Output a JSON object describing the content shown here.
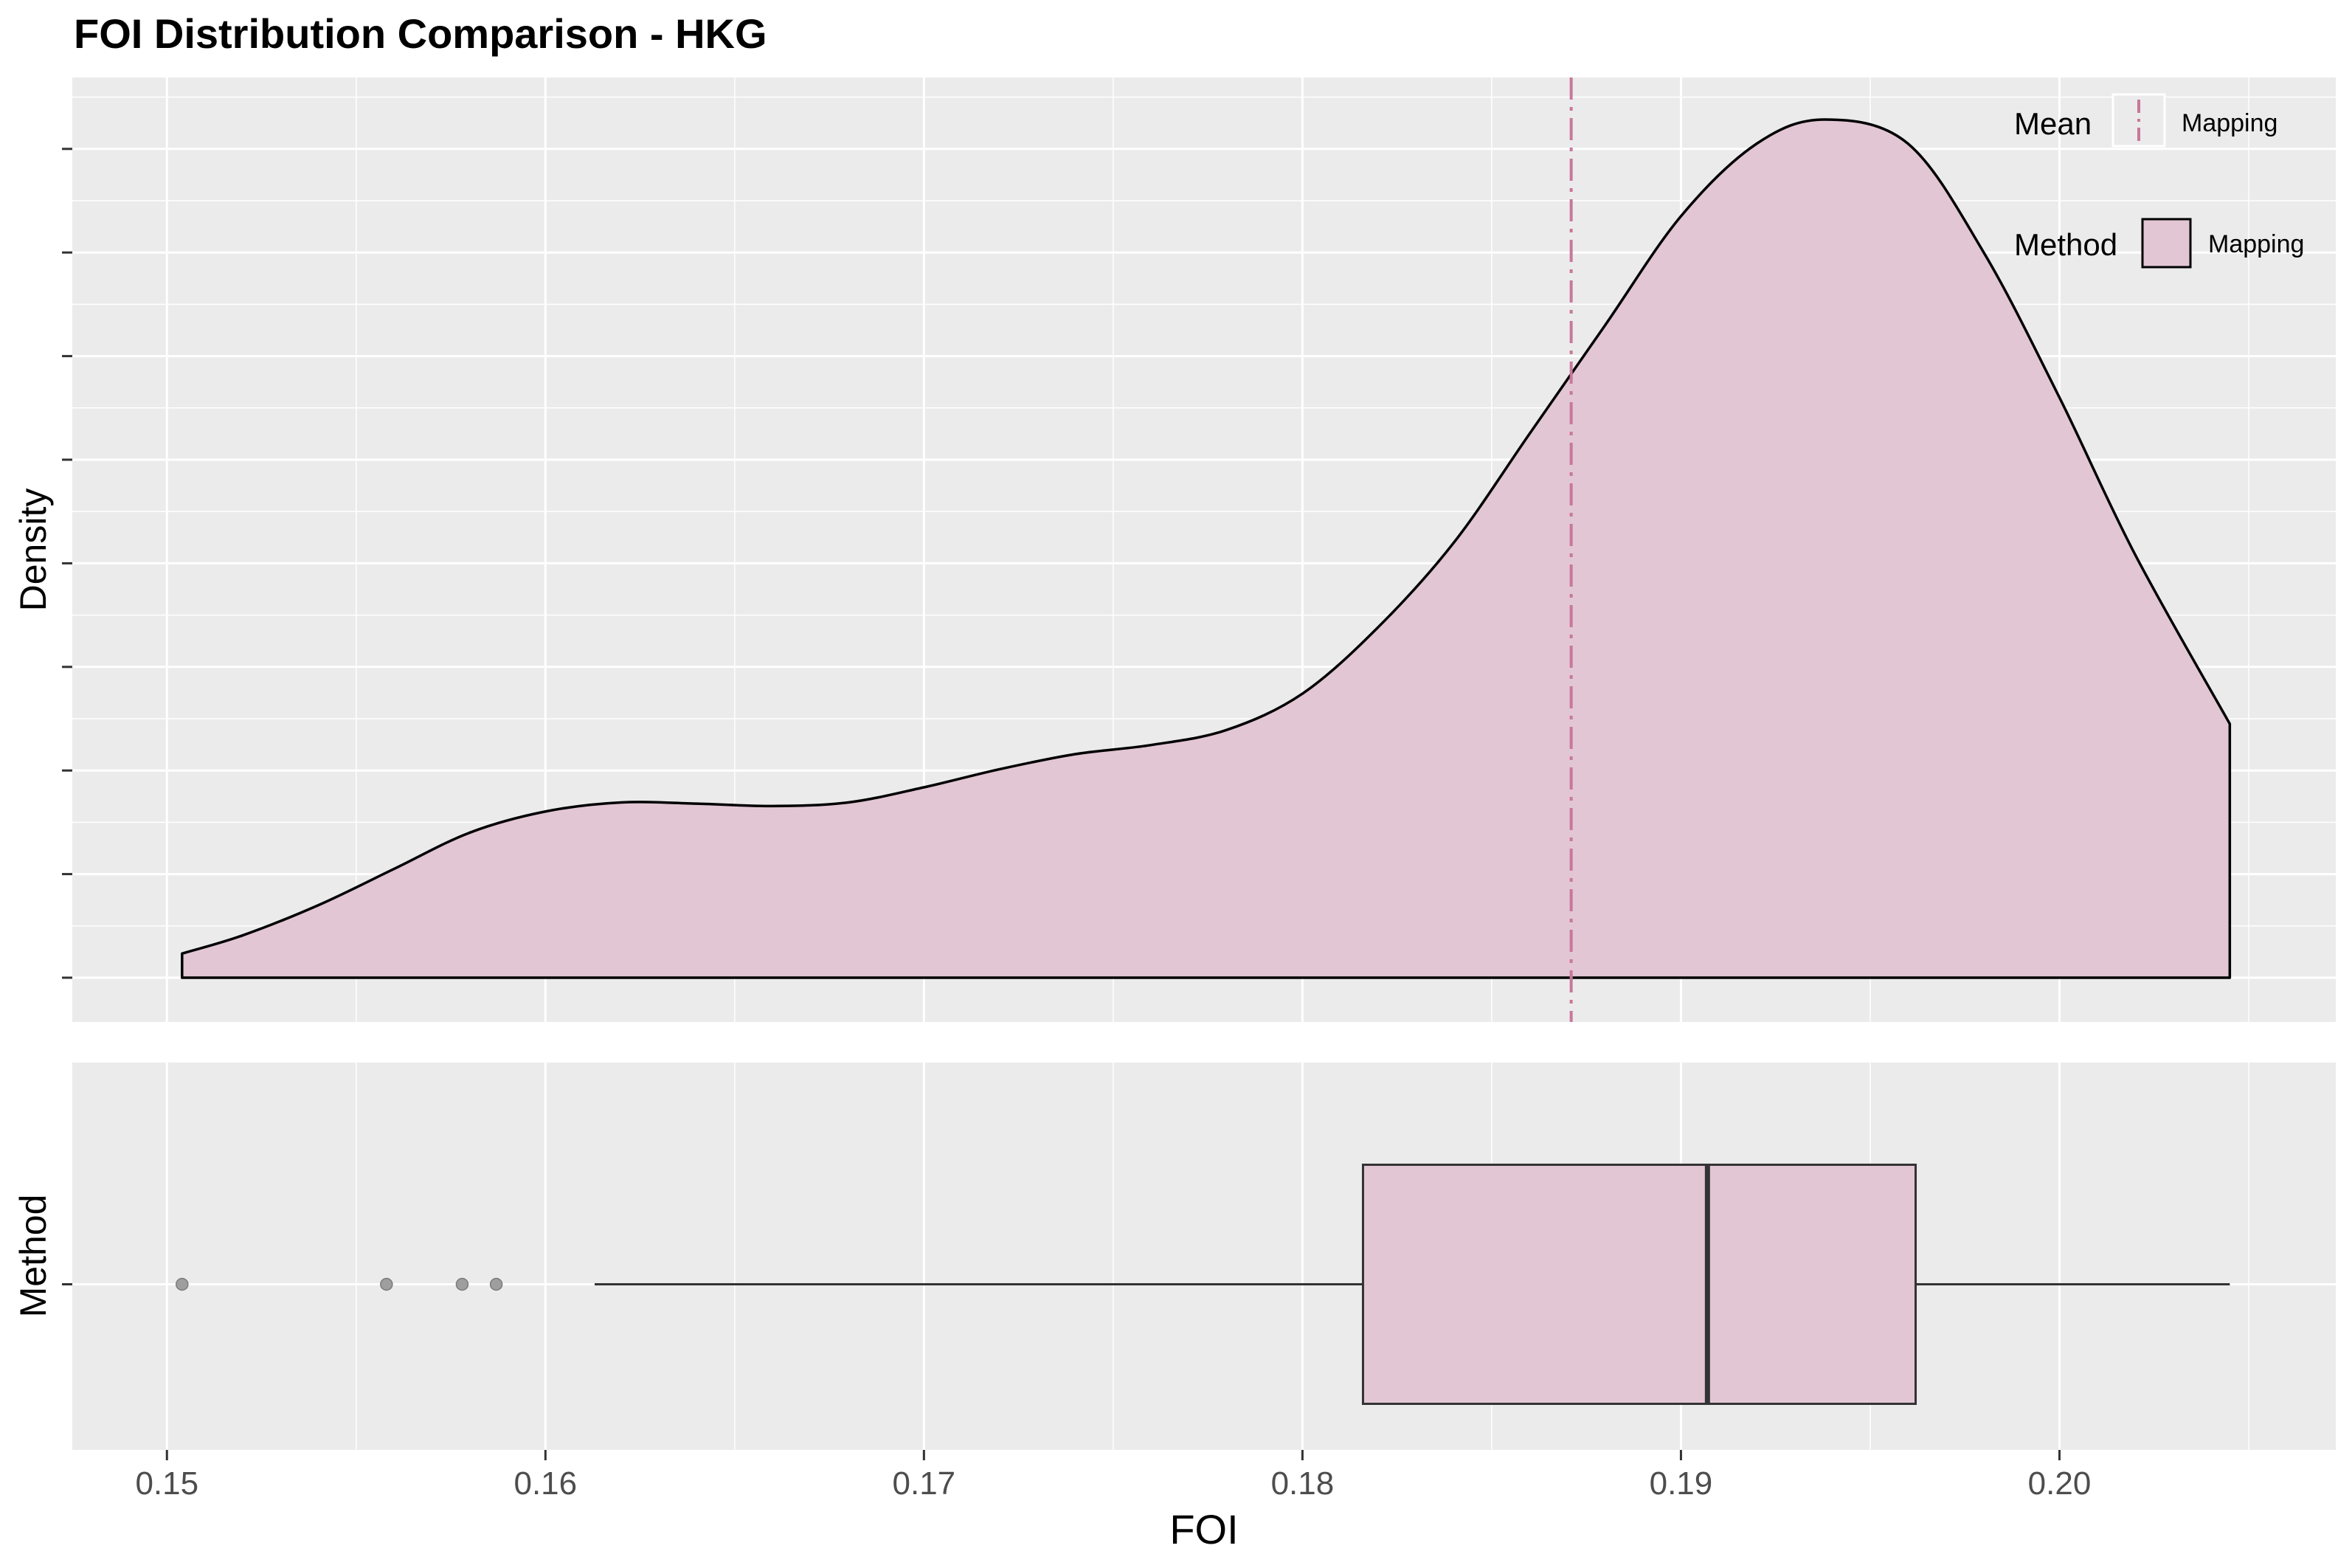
{
  "title": "FOI Distribution Comparison - HKG",
  "colors": {
    "panel_bg": "#EBEBEB",
    "grid": "#FFFFFF",
    "fill": "#E2C6D4",
    "mean_line": "#C9779B",
    "outline": "#000000",
    "outlier": "#9E9E9E",
    "tick_text": "#4D4D4D"
  },
  "legend": {
    "mean_title": "Mean",
    "mean_label": "Mapping",
    "method_title": "Method",
    "method_label": "Mapping"
  },
  "chart_data": [
    {
      "type": "area",
      "subtype": "density",
      "ylabel": "Density",
      "series": [
        {
          "name": "Mapping",
          "x": [
            0.1504,
            0.152,
            0.154,
            0.156,
            0.158,
            0.16,
            0.162,
            0.164,
            0.166,
            0.168,
            0.17,
            0.172,
            0.174,
            0.176,
            0.178,
            0.18,
            0.182,
            0.184,
            0.186,
            0.188,
            0.19,
            0.192,
            0.1938,
            0.196,
            0.198,
            0.2,
            0.202,
            0.2045
          ],
          "density": [
            0.04,
            0.07,
            0.12,
            0.18,
            0.24,
            0.275,
            0.29,
            0.288,
            0.284,
            0.29,
            0.315,
            0.345,
            0.37,
            0.385,
            0.41,
            0.47,
            0.58,
            0.72,
            0.9,
            1.08,
            1.26,
            1.38,
            1.42,
            1.38,
            1.2,
            0.96,
            0.7,
            0.42
          ]
        }
      ],
      "mean": 0.1871,
      "density_max": 1.5,
      "xlim": [
        0.1475,
        0.2073
      ],
      "grid": true
    },
    {
      "type": "box",
      "xlabel": "FOI",
      "ylabel": "Method",
      "x_ticks": [
        0.15,
        0.16,
        0.17,
        0.18,
        0.19,
        0.2
      ],
      "x_tick_labels": [
        "0.15",
        "0.16",
        "0.17",
        "0.18",
        "0.19",
        "0.20"
      ],
      "series": [
        {
          "name": "Mapping",
          "whisker_low": 0.1613,
          "q1": 0.1816,
          "median": 0.1907,
          "q3": 0.1962,
          "whisker_high": 0.2045,
          "outliers": [
            0.1504,
            0.1558,
            0.1578,
            0.1587
          ]
        }
      ],
      "xlim": [
        0.1475,
        0.2073
      ],
      "grid": true
    }
  ]
}
